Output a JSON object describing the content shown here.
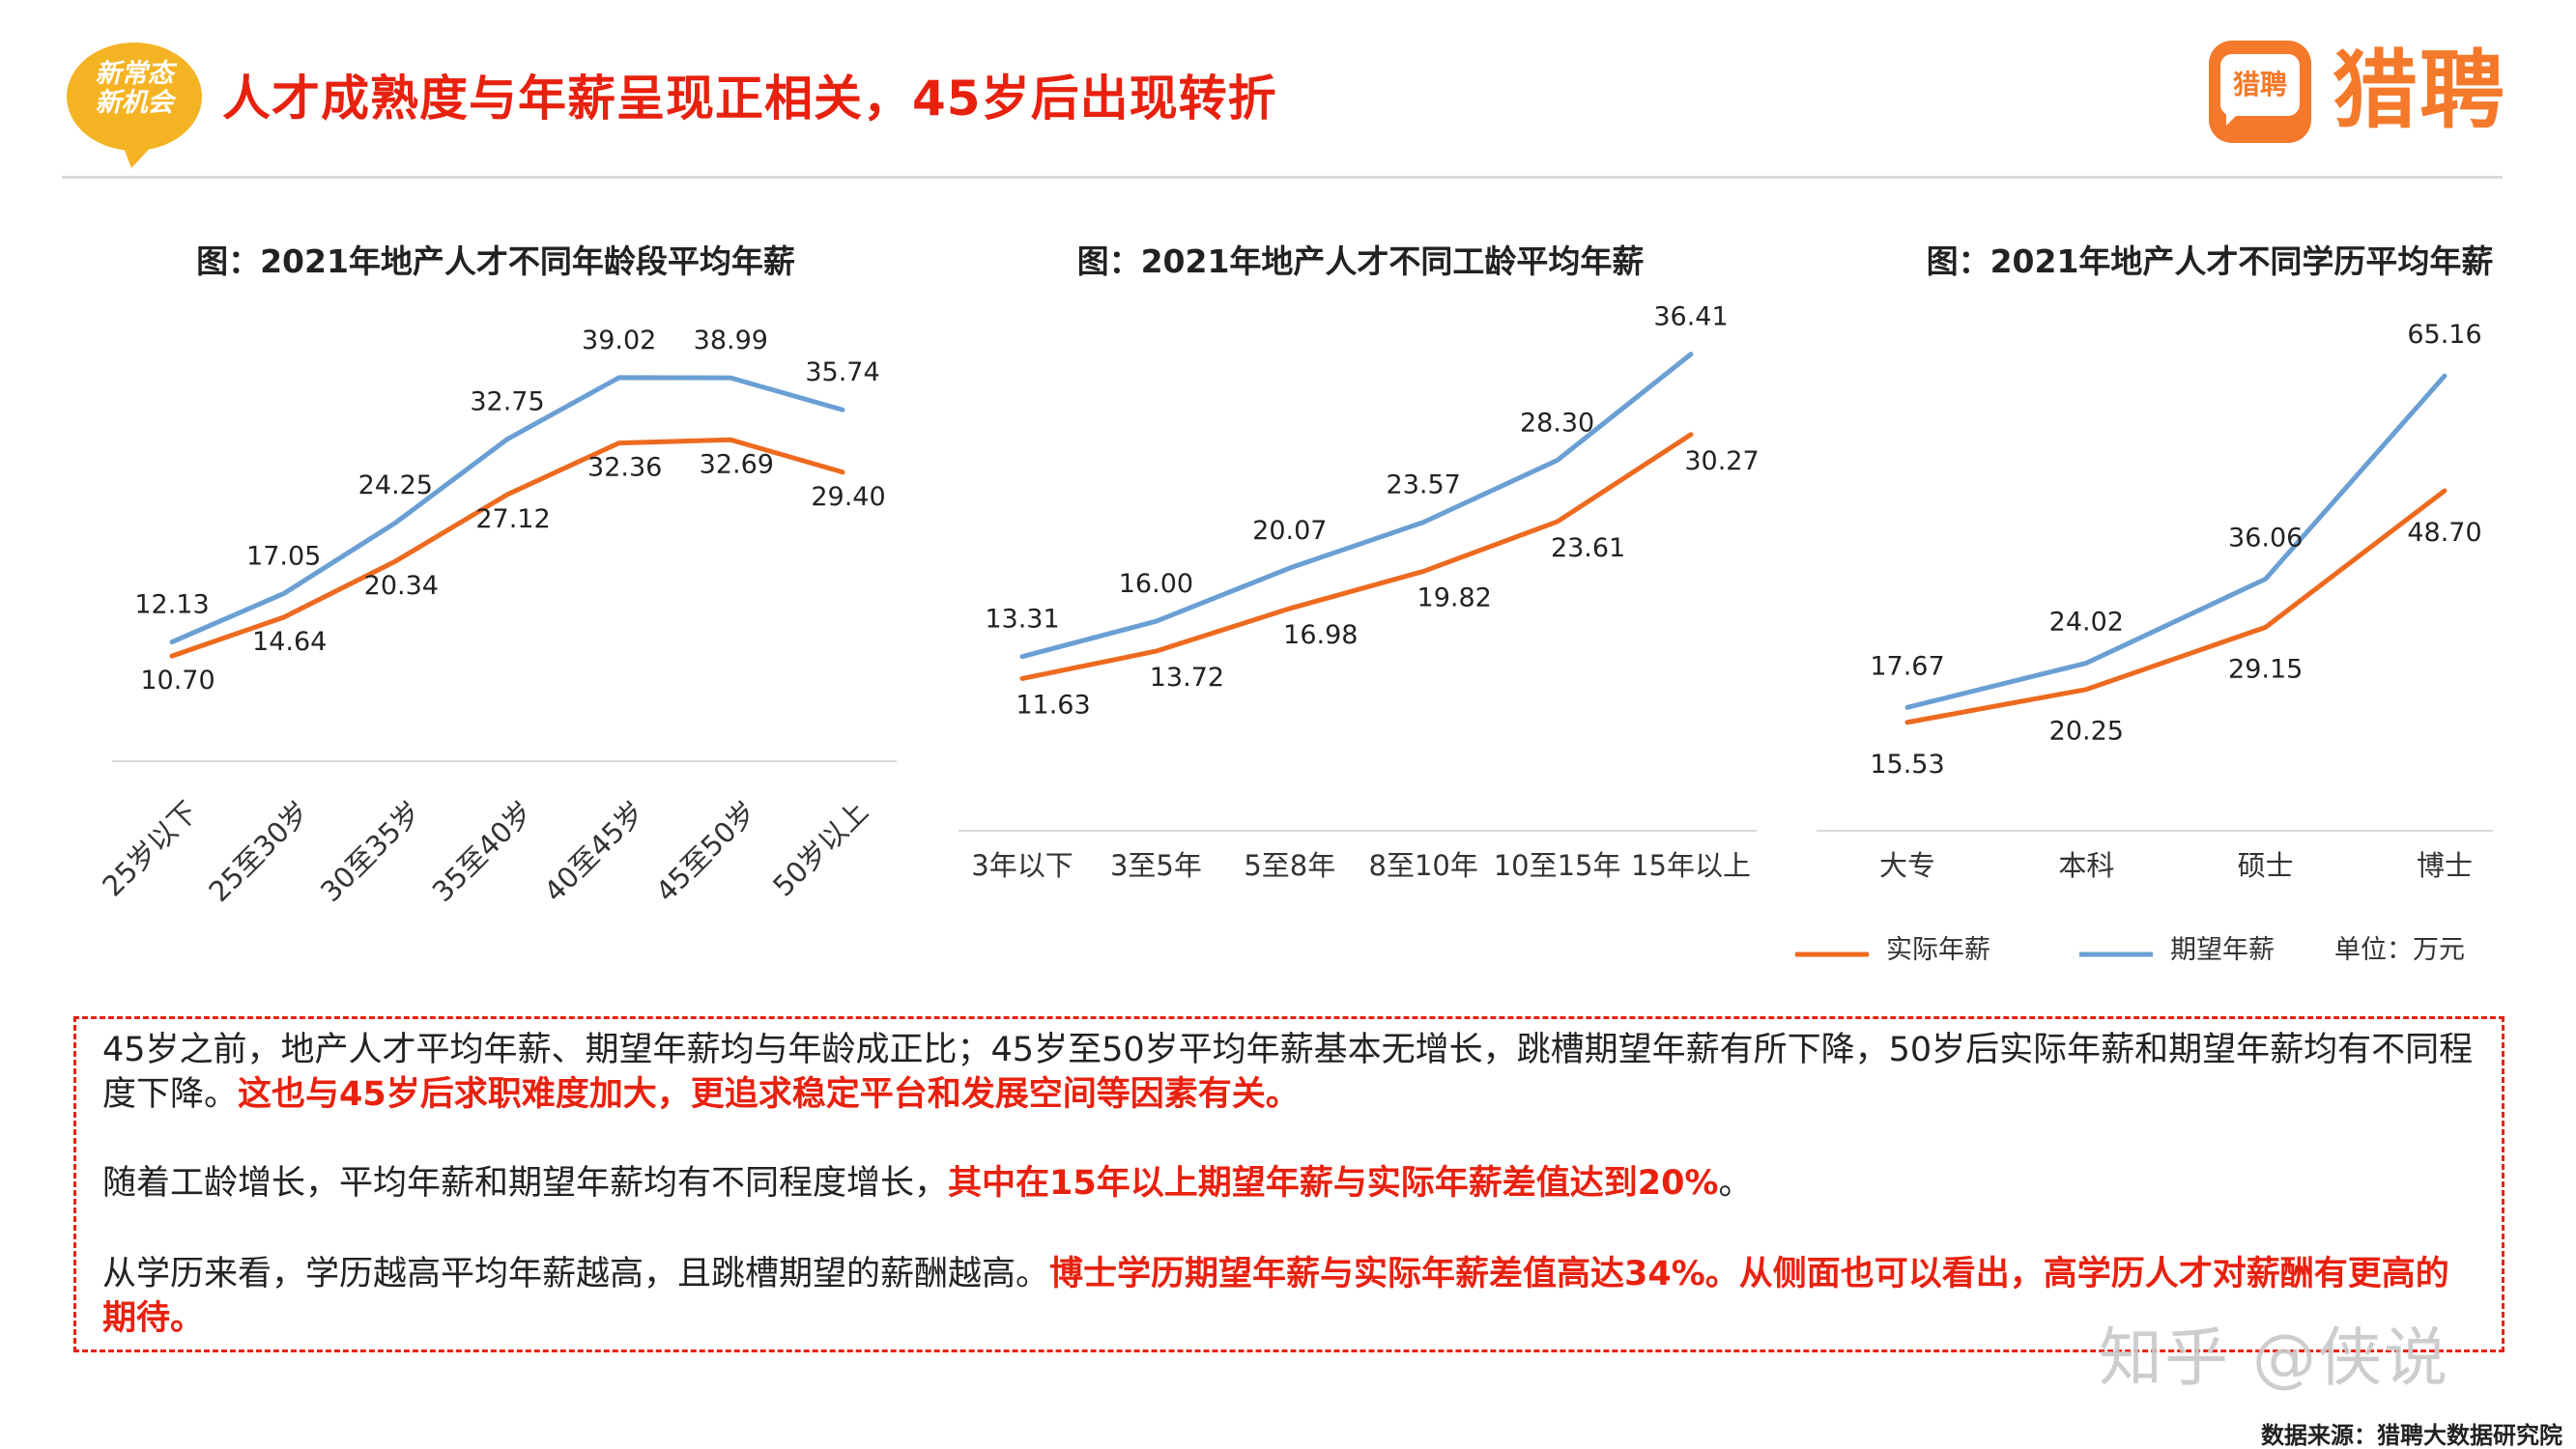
{
  "header": {
    "badge_line1": "新常态",
    "badge_line2": "新机会",
    "title": "人才成熟度与年薪呈现正相关，45岁后出现转折",
    "logo_icon_text": "猎聘",
    "logo_text": "猎聘"
  },
  "legend": {
    "actual": "实际年薪",
    "expected": "期望年薪",
    "unit": "单位：万元"
  },
  "colors": {
    "actual": "#ed6a1f",
    "expected": "#6a9fd4",
    "accent_red": "#e8210f",
    "brand_orange": "#f4792a"
  },
  "chart_data": [
    {
      "type": "line",
      "title": "图：2021年地产人才不同年龄段平均年薪",
      "categories": [
        "25岁以下",
        "25至30岁",
        "30至35岁",
        "35至40岁",
        "40至45岁",
        "45至50岁",
        "50岁以上"
      ],
      "series": [
        {
          "name": "实际年薪",
          "values": [
            10.7,
            14.64,
            20.34,
            27.12,
            32.36,
            32.69,
            29.4
          ]
        },
        {
          "name": "期望年薪",
          "values": [
            12.13,
            17.05,
            24.25,
            32.75,
            39.02,
            38.99,
            35.74
          ]
        }
      ],
      "labels": {
        "actual": [
          "10.70",
          "14.64",
          "20.34",
          "27.12",
          "32.36",
          "32.69",
          "29.40"
        ],
        "expected": [
          "12.13",
          "17.05",
          "24.25",
          "32.75",
          "39.02",
          "38.99",
          "35.74"
        ]
      },
      "ylim": [
        0,
        45
      ],
      "rotated_ticks": true,
      "grid": false
    },
    {
      "type": "line",
      "title": "图：2021年地产人才不同工龄平均年薪",
      "categories": [
        "3年以下",
        "3至5年",
        "5至8年",
        "8至10年",
        "10至15年",
        "15年以上"
      ],
      "series": [
        {
          "name": "实际年薪",
          "values": [
            11.63,
            13.72,
            16.98,
            19.82,
            23.61,
            30.27
          ]
        },
        {
          "name": "期望年薪",
          "values": [
            13.31,
            16.0,
            20.07,
            23.57,
            28.3,
            36.41
          ]
        }
      ],
      "labels": {
        "actual": [
          "11.63",
          "13.72",
          "16.98",
          "19.82",
          "23.61",
          "30.27"
        ],
        "expected": [
          "13.31",
          "16.00",
          "20.07",
          "23.57",
          "28.30",
          "36.41"
        ]
      },
      "ylim": [
        0,
        40
      ],
      "rotated_ticks": false,
      "grid": false
    },
    {
      "type": "line",
      "title": "图：2021年地产人才不同学历平均年薪",
      "categories": [
        "大专",
        "本科",
        "硕士",
        "博士"
      ],
      "series": [
        {
          "name": "实际年薪",
          "values": [
            15.53,
            20.25,
            29.15,
            48.7
          ]
        },
        {
          "name": "期望年薪",
          "values": [
            17.67,
            24.02,
            36.06,
            65.16
          ]
        }
      ],
      "labels": {
        "actual": [
          "15.53",
          "20.25",
          "29.15",
          "48.70"
        ],
        "expected": [
          "17.67",
          "24.02",
          "36.06",
          "65.16"
        ]
      },
      "ylim": [
        0,
        75
      ],
      "rotated_ticks": false,
      "grid": false
    }
  ],
  "notes": {
    "p1_normal": "45岁之前，地产人才平均年薪、期望年薪均与年龄成正比；45岁至50岁平均年薪基本无增长，跳槽期望年薪有所下降，50岁后实际年薪和期望年薪均有不同程度下降。",
    "p1_red": "这也与45岁后求职难度加大，更追求稳定平台和发展空间等因素有关。",
    "p2_normal": "随着工龄增长，平均年薪和期望年薪均有不同程度增长，",
    "p2_red": "其中在15年以上期望年薪与实际年薪差值达到20%",
    "p2_end": "。",
    "p3_normal": "从学历来看，学历越高平均年薪越高，且跳槽期望的薪酬越高。",
    "p3_red": "博士学历期望年薪与实际年薪差值高达34%。从侧面也可以看出，高学历人才对薪酬有更高的期待。"
  },
  "watermark": "知乎 @侠说",
  "source": "数据来源：猎聘大数据研究院"
}
